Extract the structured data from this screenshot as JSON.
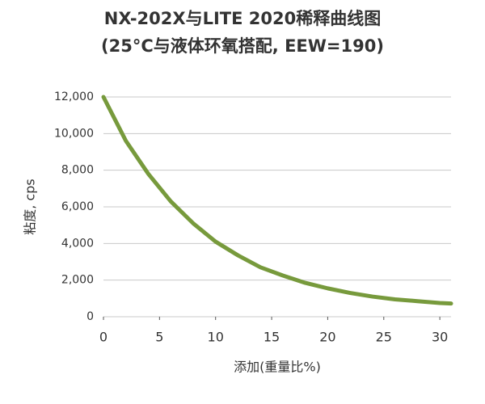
{
  "chart_data": {
    "type": "line",
    "title": "NX-202X与LITE 2020稀释曲线图",
    "subtitle": "(25°C与液体环氧搭配, EEW=190)",
    "x_label": "添加(重量比%)",
    "y_label": "粘度, cps",
    "x": [
      0,
      2,
      4,
      6,
      8,
      10,
      12,
      14,
      16,
      18,
      20,
      22,
      24,
      26,
      28,
      30,
      31
    ],
    "series": [
      {
        "name": "NX-202X与LITE 2020",
        "color": "#779a3c",
        "values": [
          12000,
          9600,
          7800,
          6300,
          5100,
          4100,
          3350,
          2700,
          2250,
          1850,
          1550,
          1300,
          1100,
          950,
          850,
          750,
          720
        ]
      }
    ],
    "xlim": [
      0,
      31
    ],
    "xticks": [
      0,
      5,
      10,
      15,
      20,
      25,
      30
    ],
    "ylim": [
      0,
      12000
    ],
    "yticks": [
      0,
      {
        "value": 2000,
        "label": "2,000"
      },
      {
        "value": 4000,
        "label": "4,000"
      },
      {
        "value": 6000,
        "label": "6,000"
      },
      {
        "value": 8000,
        "label": "8,000"
      },
      {
        "value": 10000,
        "label": "10,000"
      },
      {
        "value": 12000,
        "label": "12,000"
      }
    ],
    "grid": true
  }
}
